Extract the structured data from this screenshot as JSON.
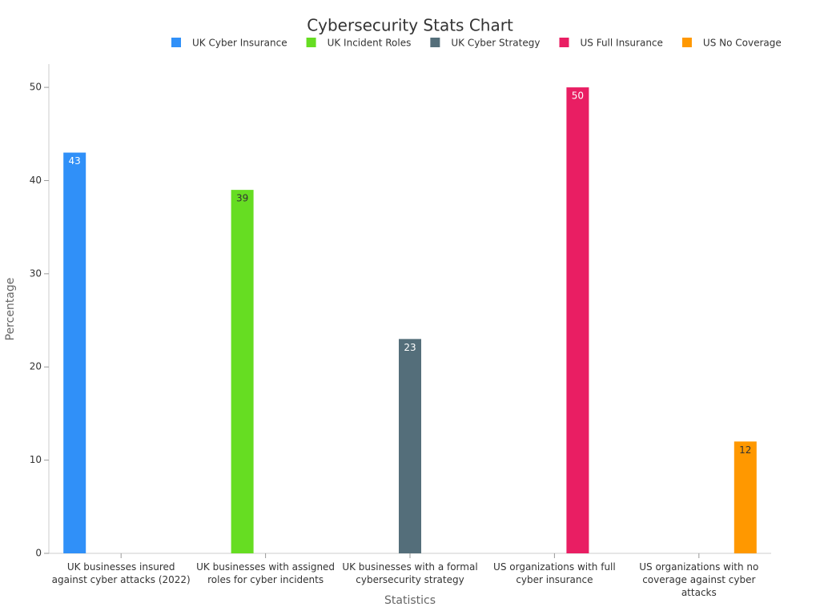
{
  "chart_data": {
    "type": "bar",
    "title": "Cybersecurity Stats Chart",
    "x_label": "Statistics",
    "y_label": "Percentage",
    "categories": [
      "UK businesses insured against cyber attacks (2022)",
      "UK businesses with assigned roles for cyber incidents",
      "UK businesses with a formal cybersecurity strategy",
      "US organizations with full cyber insurance",
      "US organizations with no coverage against cyber attacks"
    ],
    "series": [
      {
        "name": "UK Cyber Insurance",
        "color": "#3090f8",
        "values": [
          43,
          null,
          null,
          null,
          null
        ]
      },
      {
        "name": "UK Incident Roles",
        "color": "#66dd22",
        "values": [
          null,
          39,
          null,
          null,
          null
        ]
      },
      {
        "name": "UK Cyber Strategy",
        "color": "#546e7a",
        "values": [
          null,
          null,
          23,
          null,
          null
        ]
      },
      {
        "name": "US Full Insurance",
        "color": "#e91e63",
        "values": [
          null,
          null,
          null,
          50,
          null
        ]
      },
      {
        "name": "US No Coverage",
        "color": "#ff9800",
        "values": [
          null,
          null,
          null,
          null,
          12
        ]
      }
    ],
    "ylim": [
      0,
      52.5
    ],
    "yticks": [
      0,
      10,
      20,
      30,
      40,
      50
    ],
    "grid": false,
    "legend": "top"
  }
}
